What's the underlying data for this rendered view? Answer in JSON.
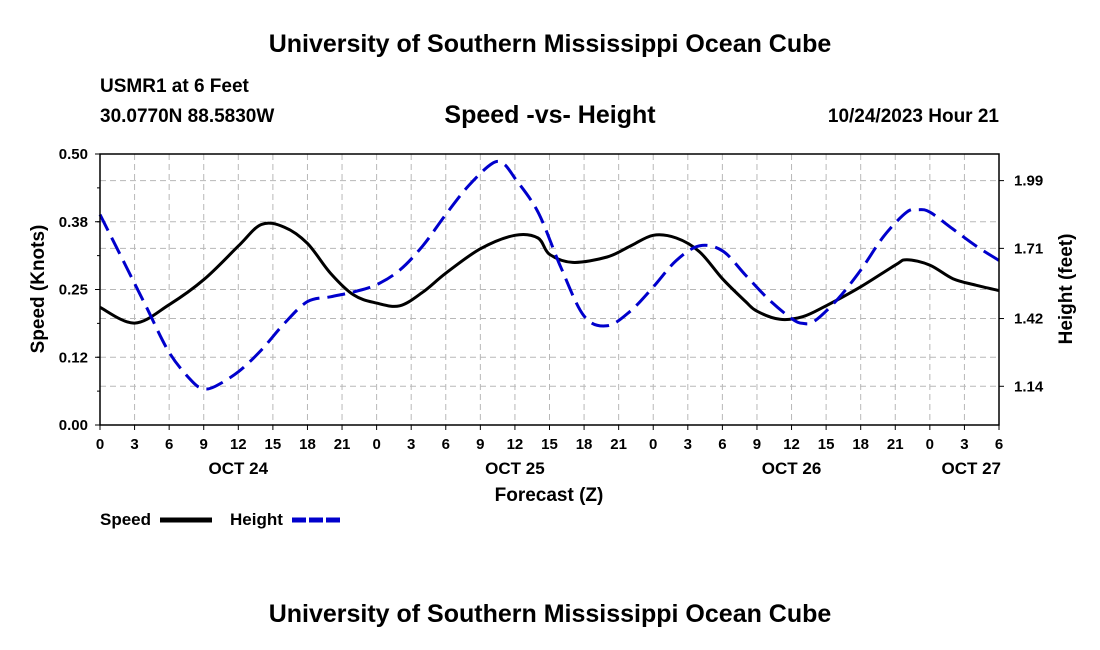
{
  "page": {
    "top_title": "University of Southern Mississippi Ocean Cube",
    "bottom_title": "University of Southern Mississippi Ocean Cube",
    "station": "USMR1 at 6 Feet",
    "coords": "30.0770N  88.5830W",
    "timestamp": "10/24/2023 Hour 21"
  },
  "chart_data": {
    "type": "line",
    "title": "Speed -vs- Height",
    "xlabel": "Forecast (Z)",
    "ylabel": "Speed (Knots)",
    "y2label": "Height (feet)",
    "xlim": [
      0,
      78
    ],
    "ylim": [
      0,
      0.5
    ],
    "y2lim": [
      0.98,
      2.1
    ],
    "yticks": [
      {
        "value": 0.0,
        "label": "0.00"
      },
      {
        "value": 0.125,
        "label": "0.12"
      },
      {
        "value": 0.25,
        "label": "0.25"
      },
      {
        "value": 0.375,
        "label": "0.38"
      },
      {
        "value": 0.5,
        "label": "0.50"
      }
    ],
    "y2ticks": [
      {
        "value": 1.14,
        "label": "1.14"
      },
      {
        "value": 1.42,
        "label": "1.42"
      },
      {
        "value": 1.71,
        "label": "1.71"
      },
      {
        "value": 1.99,
        "label": "1.99"
      }
    ],
    "xticks": [
      {
        "value": 0,
        "label": "0"
      },
      {
        "value": 3,
        "label": "3"
      },
      {
        "value": 6,
        "label": "6"
      },
      {
        "value": 9,
        "label": "9"
      },
      {
        "value": 12,
        "label": "12"
      },
      {
        "value": 15,
        "label": "15"
      },
      {
        "value": 18,
        "label": "18"
      },
      {
        "value": 21,
        "label": "21"
      },
      {
        "value": 24,
        "label": "0"
      },
      {
        "value": 27,
        "label": "3"
      },
      {
        "value": 30,
        "label": "6"
      },
      {
        "value": 33,
        "label": "9"
      },
      {
        "value": 36,
        "label": "12"
      },
      {
        "value": 39,
        "label": "15"
      },
      {
        "value": 42,
        "label": "18"
      },
      {
        "value": 45,
        "label": "21"
      },
      {
        "value": 48,
        "label": "0"
      },
      {
        "value": 51,
        "label": "3"
      },
      {
        "value": 54,
        "label": "6"
      },
      {
        "value": 57,
        "label": "9"
      },
      {
        "value": 60,
        "label": "12"
      },
      {
        "value": 63,
        "label": "15"
      },
      {
        "value": 66,
        "label": "18"
      },
      {
        "value": 69,
        "label": "21"
      },
      {
        "value": 72,
        "label": "0"
      },
      {
        "value": 75,
        "label": "3"
      },
      {
        "value": 78,
        "label": "6"
      }
    ],
    "day_labels": [
      {
        "value": 12,
        "label": "OCT 24"
      },
      {
        "value": 36,
        "label": "OCT 25"
      },
      {
        "value": 60,
        "label": "OCT 26"
      },
      {
        "value": 78,
        "label": "OCT 27"
      }
    ],
    "series": [
      {
        "name": "Speed",
        "axis": "left",
        "color": "#000000",
        "style": "solid",
        "x": [
          0,
          3,
          6,
          9,
          12,
          14,
          16,
          18,
          20,
          22,
          24,
          26,
          28,
          30,
          33,
          36,
          38,
          39,
          41,
          44,
          46,
          48,
          50,
          52,
          54,
          56,
          57,
          59,
          61,
          63,
          66,
          69,
          70,
          72,
          74,
          76,
          78
        ],
        "y": [
          0.217,
          0.188,
          0.222,
          0.268,
          0.33,
          0.37,
          0.365,
          0.335,
          0.28,
          0.24,
          0.225,
          0.22,
          0.245,
          0.28,
          0.325,
          0.35,
          0.345,
          0.315,
          0.3,
          0.31,
          0.33,
          0.35,
          0.345,
          0.32,
          0.27,
          0.228,
          0.21,
          0.195,
          0.2,
          0.22,
          0.255,
          0.295,
          0.305,
          0.295,
          0.27,
          0.258,
          0.248
        ]
      },
      {
        "name": "Height",
        "axis": "right",
        "color": "#0000cc",
        "style": "dashed",
        "x": [
          0,
          2,
          4,
          6,
          8,
          9,
          10,
          12,
          14,
          16,
          18,
          20,
          22,
          24,
          26,
          28,
          30,
          32,
          34,
          35,
          36,
          38,
          40,
          42,
          44,
          46,
          48,
          50,
          52,
          54,
          56,
          58,
          60,
          61,
          62,
          64,
          66,
          68,
          70,
          71,
          72,
          74,
          76,
          78
        ],
        "y": [
          1.85,
          1.66,
          1.47,
          1.28,
          1.16,
          1.13,
          1.14,
          1.2,
          1.29,
          1.4,
          1.49,
          1.51,
          1.53,
          1.56,
          1.62,
          1.72,
          1.85,
          1.97,
          2.06,
          2.06,
          2.0,
          1.86,
          1.63,
          1.43,
          1.39,
          1.45,
          1.55,
          1.66,
          1.72,
          1.7,
          1.6,
          1.5,
          1.42,
          1.4,
          1.41,
          1.5,
          1.62,
          1.76,
          1.86,
          1.87,
          1.86,
          1.79,
          1.72,
          1.66
        ]
      }
    ],
    "legend": [
      {
        "label": "Speed",
        "color": "#000000",
        "style": "solid"
      },
      {
        "label": "Height",
        "color": "#0000cc",
        "style": "dashed"
      }
    ],
    "grid": true,
    "legend_position": "bottom-left"
  }
}
